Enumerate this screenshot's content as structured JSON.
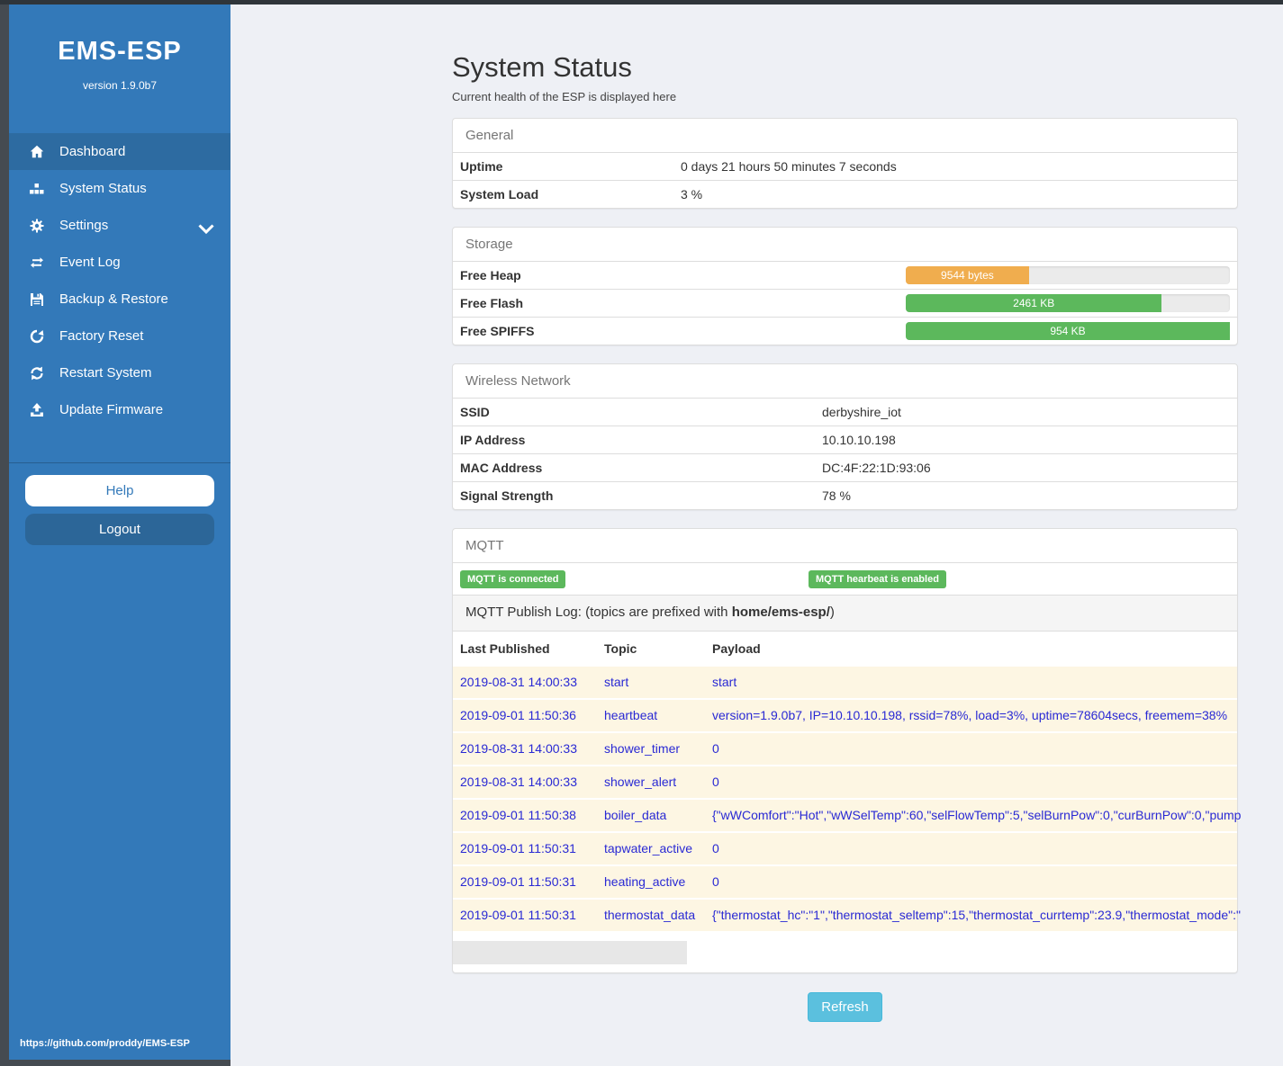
{
  "sidebar": {
    "title": "EMS-ESP",
    "version": "version 1.9.0b7",
    "items": [
      {
        "label": "Dashboard"
      },
      {
        "label": "System Status"
      },
      {
        "label": "Settings"
      },
      {
        "label": "Event Log"
      },
      {
        "label": "Backup & Restore"
      },
      {
        "label": "Factory Reset"
      },
      {
        "label": "Restart System"
      },
      {
        "label": "Update Firmware"
      }
    ],
    "help_label": "Help",
    "logout_label": "Logout",
    "footer_link": "https://github.com/proddy/EMS-ESP"
  },
  "page": {
    "title": "System Status",
    "subtitle": "Current health of the ESP is displayed here"
  },
  "general": {
    "title": "General",
    "rows": [
      {
        "label": "Uptime",
        "value": "0 days 21 hours 50 minutes 7 seconds"
      },
      {
        "label": "System Load",
        "value": "3 %"
      }
    ]
  },
  "storage": {
    "title": "Storage",
    "rows": [
      {
        "label": "Free Heap",
        "value": "9544 bytes",
        "percent": 38,
        "color": "#f0ad4e"
      },
      {
        "label": "Free Flash",
        "value": "2461 KB",
        "percent": 79,
        "color": "#5cb85c"
      },
      {
        "label": "Free SPIFFS",
        "value": "954 KB",
        "percent": 100,
        "color": "#5cb85c"
      }
    ]
  },
  "wireless": {
    "title": "Wireless Network",
    "rows": [
      {
        "label": "SSID",
        "value": "derbyshire_iot"
      },
      {
        "label": "IP Address",
        "value": "10.10.10.198"
      },
      {
        "label": "MAC Address",
        "value": "DC:4F:22:1D:93:06"
      },
      {
        "label": "Signal Strength",
        "value": "78 %"
      }
    ]
  },
  "mqtt": {
    "title": "MQTT",
    "badge_connected": "MQTT is connected",
    "badge_heartbeat": "MQTT hearbeat is enabled",
    "log_label_prefix": "MQTT Publish Log: (topics are prefixed with ",
    "log_topic_prefix": "home/ems-esp/",
    "log_label_suffix": ")",
    "table": {
      "headers": {
        "time": "Last Published",
        "topic": "Topic",
        "payload": "Payload"
      },
      "rows": [
        {
          "time": "2019-08-31 14:00:33",
          "topic": "start",
          "payload": "start"
        },
        {
          "time": "2019-09-01 11:50:36",
          "topic": "heartbeat",
          "payload": "version=1.9.0b7, IP=10.10.10.198, rssid=78%, load=3%, uptime=78604secs, freemem=38%"
        },
        {
          "time": "2019-08-31 14:00:33",
          "topic": "shower_timer",
          "payload": "0"
        },
        {
          "time": "2019-08-31 14:00:33",
          "topic": "shower_alert",
          "payload": "0"
        },
        {
          "time": "2019-09-01 11:50:38",
          "topic": "boiler_data",
          "payload": "{\"wWComfort\":\"Hot\",\"wWSelTemp\":60,\"selFlowTemp\":5,\"selBurnPow\":0,\"curBurnPow\":0,\"pump"
        },
        {
          "time": "2019-09-01 11:50:31",
          "topic": "tapwater_active",
          "payload": "0"
        },
        {
          "time": "2019-09-01 11:50:31",
          "topic": "heating_active",
          "payload": "0"
        },
        {
          "time": "2019-09-01 11:50:31",
          "topic": "thermostat_data",
          "payload": "{\"thermostat_hc\":\"1\",\"thermostat_seltemp\":15,\"thermostat_currtemp\":23.9,\"thermostat_mode\":\""
        }
      ]
    }
  },
  "refresh_label": "Refresh",
  "colors": {
    "success": "#5cb85c",
    "warning": "#f0ad4e",
    "info": "#5bc0de",
    "sidebar_blue": "#3379b9"
  }
}
